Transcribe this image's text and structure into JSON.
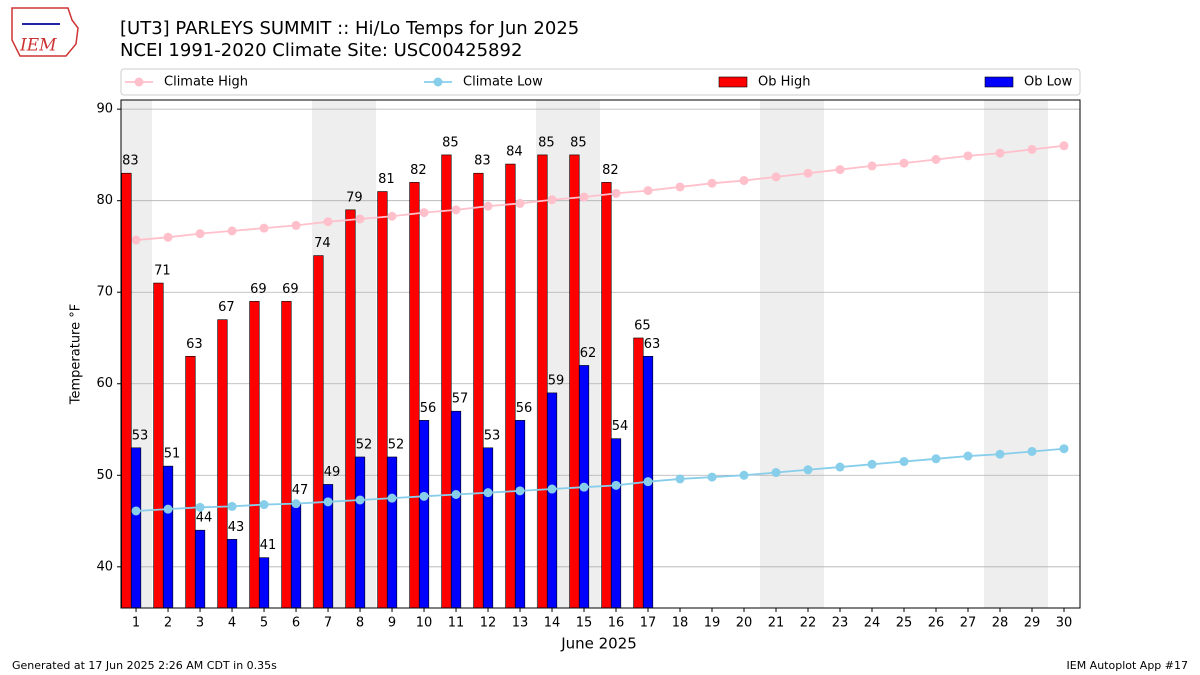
{
  "chart_data": {
    "type": "bar_line",
    "title": "[UT3] PARLEYS SUMMIT  :: Hi/Lo Temps for Jun 2025",
    "subtitle": "NCEI 1991-2020 Climate Site: USC00425892",
    "x_label": "June 2025",
    "y_label": "Temperature °F",
    "logo": "IEM",
    "footer_left": "Generated at 17 Jun 2025 2:26 AM CDT in 0.35s",
    "footer_right": "IEM Autoplot App #17",
    "x": [
      1,
      2,
      3,
      4,
      5,
      6,
      7,
      8,
      9,
      10,
      11,
      12,
      13,
      14,
      15,
      16,
      17,
      18,
      19,
      20,
      21,
      22,
      23,
      24,
      25,
      26,
      27,
      28,
      29,
      30
    ],
    "xlim": [
      0.53,
      30.5
    ],
    "xticks": [
      1,
      2,
      3,
      4,
      5,
      6,
      7,
      8,
      9,
      10,
      11,
      12,
      13,
      14,
      15,
      16,
      17,
      18,
      19,
      20,
      21,
      22,
      23,
      24,
      25,
      26,
      27,
      28,
      29,
      30
    ],
    "ylim": [
      35.5,
      91
    ],
    "yticks": [
      40,
      50,
      60,
      70,
      80,
      90
    ],
    "grid": true,
    "legend": "top",
    "weekend_days": [
      1,
      7,
      8,
      14,
      15,
      21,
      22,
      28,
      29
    ],
    "series": [
      {
        "name": "Climate High",
        "kind": "line",
        "color": "#ffc0cb",
        "values": [
          75.7,
          76.0,
          76.4,
          76.7,
          77.0,
          77.3,
          77.7,
          78.0,
          78.3,
          78.7,
          79.0,
          79.4,
          79.7,
          80.1,
          80.4,
          80.8,
          81.1,
          81.5,
          81.9,
          82.2,
          82.6,
          83.0,
          83.4,
          83.8,
          84.1,
          84.5,
          84.9,
          85.2,
          85.6,
          86.0
        ]
      },
      {
        "name": "Climate Low",
        "kind": "line",
        "color": "#87ceeb",
        "values": [
          46.1,
          46.3,
          46.5,
          46.6,
          46.8,
          46.9,
          47.1,
          47.3,
          47.5,
          47.7,
          47.9,
          48.1,
          48.3,
          48.5,
          48.7,
          48.9,
          49.3,
          49.6,
          49.8,
          50.0,
          50.3,
          50.6,
          50.9,
          51.2,
          51.5,
          51.8,
          52.1,
          52.3,
          52.6,
          52.9
        ]
      },
      {
        "name": "Ob High",
        "kind": "bar",
        "color": "#ff0000",
        "values": [
          83,
          71,
          63,
          67,
          69,
          69,
          74,
          79,
          81,
          82,
          85,
          83,
          84,
          85,
          85,
          82,
          65,
          null,
          null,
          null,
          null,
          null,
          null,
          null,
          null,
          null,
          null,
          null,
          null,
          null
        ]
      },
      {
        "name": "Ob Low",
        "kind": "bar",
        "color": "#0000ff",
        "values": [
          53,
          51,
          44,
          43,
          41,
          47,
          49,
          52,
          52,
          56,
          57,
          53,
          56,
          59,
          62,
          54,
          63,
          null,
          null,
          null,
          null,
          null,
          null,
          null,
          null,
          null,
          null,
          null,
          null,
          null
        ]
      }
    ]
  }
}
